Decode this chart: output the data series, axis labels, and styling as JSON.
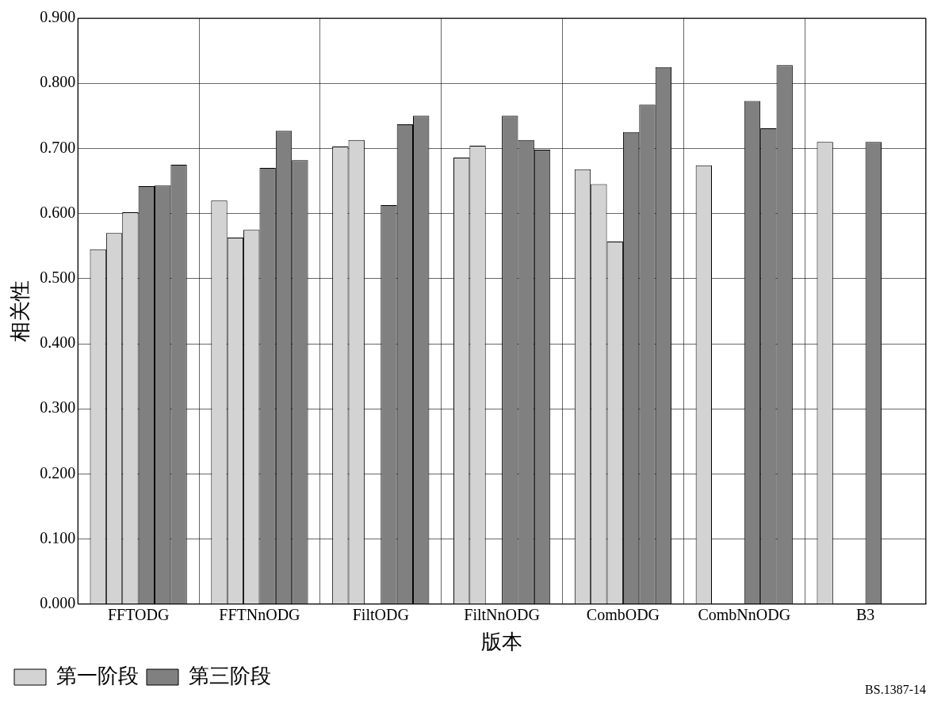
{
  "chart_data": {
    "type": "bar",
    "xlabel": "版本",
    "ylabel": "相关性",
    "categories": [
      "FFTODG",
      "FFTNnODG",
      "FiltODG",
      "FiltNnODG",
      "CombODG",
      "CombNnODG",
      "B3"
    ],
    "series": [
      {
        "name": "第一阶段",
        "color": "#d3d3d3",
        "values": [
          0.545,
          0.62,
          0.703,
          0.686,
          0.668,
          0.674,
          0.71
        ]
      },
      {
        "color": "#d3d3d3",
        "values": [
          0.57,
          0.563,
          0.713,
          0.704,
          0.645,
          null,
          null
        ]
      },
      {
        "color": "#d3d3d3",
        "values": [
          0.602,
          0.575,
          null,
          null,
          0.557,
          null,
          null
        ]
      },
      {
        "name": "第三阶段",
        "color": "#808080",
        "values": [
          0.642,
          0.67,
          0.613,
          0.75,
          0.725,
          0.773,
          0.71
        ]
      },
      {
        "color": "#808080",
        "values": [
          0.643,
          0.727,
          0.737,
          0.713,
          0.767,
          0.731,
          null
        ]
      },
      {
        "color": "#808080",
        "values": [
          0.675,
          0.682,
          0.75,
          0.698,
          0.825,
          0.828,
          null
        ]
      }
    ],
    "ylim": [
      0,
      0.9
    ],
    "yticks": [
      {
        "value": 0,
        "label": "0.000"
      },
      {
        "value": 0.1,
        "label": "0.100"
      },
      {
        "value": 0.2,
        "label": "0.200"
      },
      {
        "value": 0.3,
        "label": "0.300"
      },
      {
        "value": 0.4,
        "label": "0.400"
      },
      {
        "value": 0.5,
        "label": "0.500"
      },
      {
        "value": 0.6,
        "label": "0.600"
      },
      {
        "value": 0.7,
        "label": "0.700"
      },
      {
        "value": 0.8,
        "label": "0.800"
      },
      {
        "value": 0.9,
        "label": "0.900"
      }
    ],
    "grid": true,
    "legend": "bottom left",
    "annotations": [
      "BS.1387-14"
    ]
  }
}
